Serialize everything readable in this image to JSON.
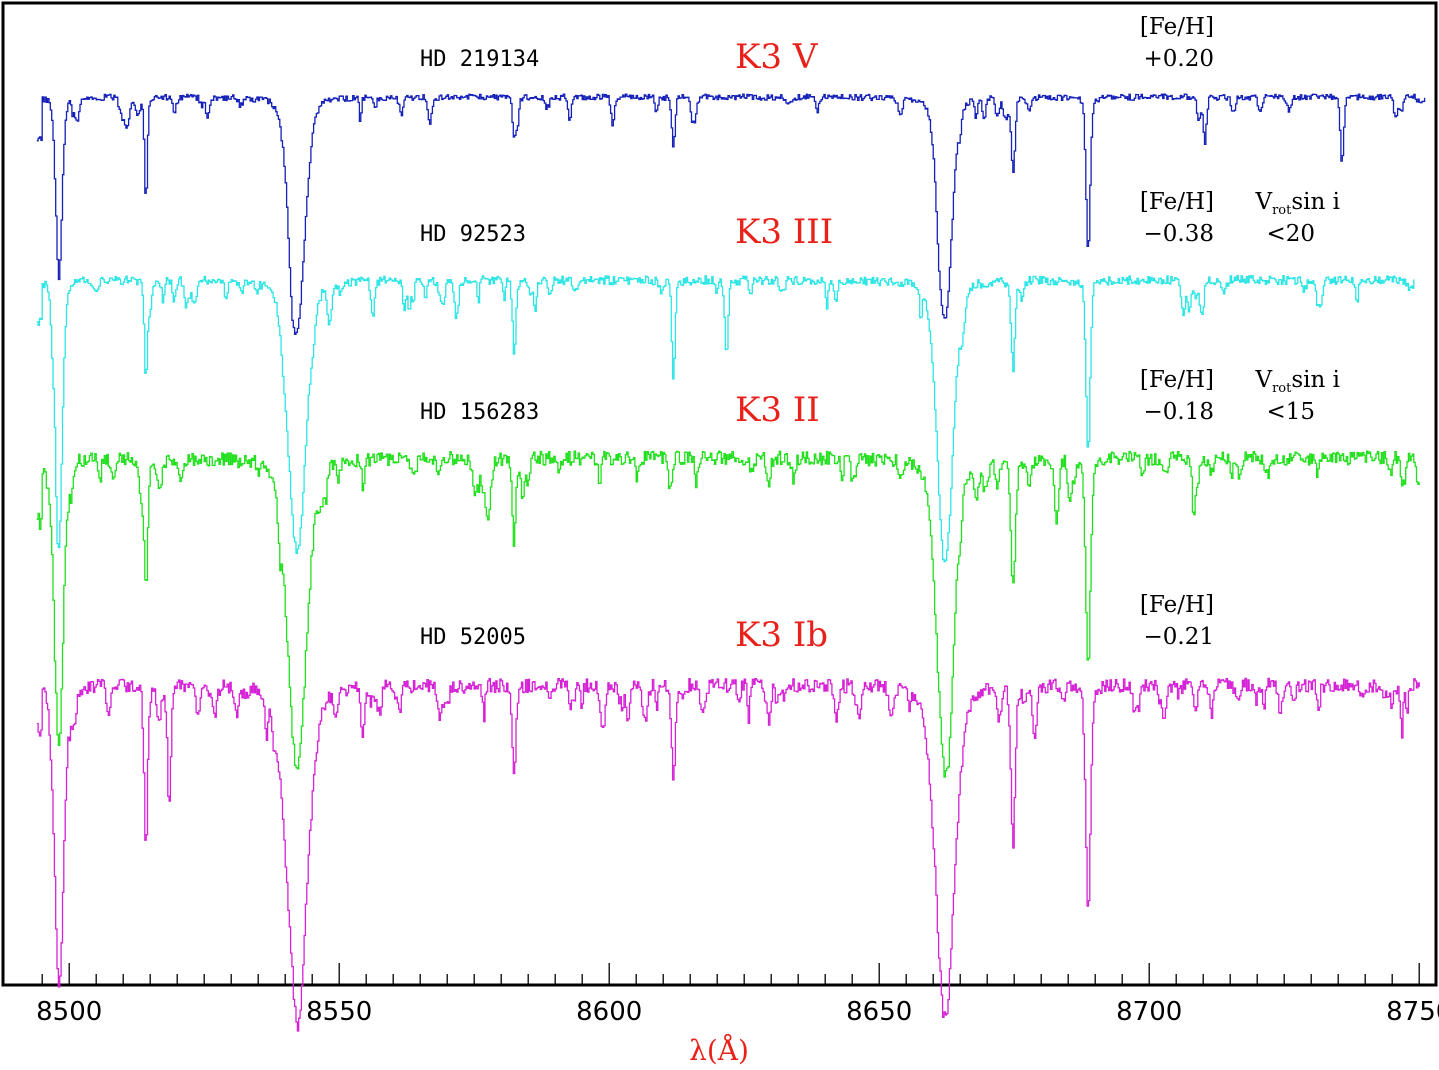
{
  "chart_data": {
    "type": "line",
    "title": "",
    "xlabel": "λ(Å)",
    "ylabel": "",
    "xlim": [
      8492,
      8752
    ],
    "x_ticks": [
      8500,
      8550,
      8600,
      8650,
      8700,
      8750
    ],
    "x_tick_labels": [
      "8500",
      "8550",
      "8600",
      "8650",
      "8700",
      "8750"
    ],
    "grid": false,
    "axis_label_color": "#e8221a",
    "series": [
      {
        "star": "HD 219134",
        "sptype": "K3  V",
        "params": [
          {
            "label": "[Fe/H]",
            "value": "+0.20"
          }
        ],
        "color": "#1420b8",
        "x_range": [
          8494,
          8751
        ],
        "continuum_level": 0.96,
        "baseline_offset": 0,
        "lines": [
          {
            "x": 8498.0,
            "depth": 0.78,
            "width": 0.6
          },
          {
            "x": 8514.1,
            "depth": 0.42,
            "width": 0.25
          },
          {
            "x": 8542.1,
            "depth": 1.0,
            "width": 1.5
          },
          {
            "x": 8582.3,
            "depth": 0.18,
            "width": 0.3
          },
          {
            "x": 8611.8,
            "depth": 0.22,
            "width": 0.3
          },
          {
            "x": 8662.1,
            "depth": 0.97,
            "width": 1.3
          },
          {
            "x": 8674.7,
            "depth": 0.34,
            "width": 0.35
          },
          {
            "x": 8688.6,
            "depth": 0.68,
            "width": 0.4
          },
          {
            "x": 8710.2,
            "depth": 0.2,
            "width": 0.3
          },
          {
            "x": 8735.6,
            "depth": 0.3,
            "width": 0.3
          }
        ]
      },
      {
        "star": "HD 92523",
        "sptype": "K3  III",
        "params": [
          {
            "label": "[Fe/H]",
            "value": "−0.38"
          },
          {
            "label": "Vrotsin i",
            "value": "<20"
          }
        ],
        "color": "#2ee5e5",
        "x_range": [
          8494,
          8749
        ],
        "continuum_level": 0.96,
        "baseline_offset": 1,
        "lines": [
          {
            "x": 8498.0,
            "depth": 0.88,
            "width": 0.7
          },
          {
            "x": 8514.1,
            "depth": 0.38,
            "width": 0.3
          },
          {
            "x": 8542.1,
            "depth": 1.05,
            "width": 1.7
          },
          {
            "x": 8582.3,
            "depth": 0.3,
            "width": 0.3
          },
          {
            "x": 8611.8,
            "depth": 0.4,
            "width": 0.3
          },
          {
            "x": 8621.6,
            "depth": 0.3,
            "width": 0.3
          },
          {
            "x": 8662.1,
            "depth": 1.1,
            "width": 1.5
          },
          {
            "x": 8674.7,
            "depth": 0.35,
            "width": 0.35
          },
          {
            "x": 8688.6,
            "depth": 0.6,
            "width": 0.4
          }
        ]
      },
      {
        "star": "HD 156283",
        "sptype": "K3  II",
        "params": [
          {
            "label": "[Fe/H]",
            "value": "−0.18"
          },
          {
            "label": "Vrotsin i",
            "value": "<15"
          }
        ],
        "color": "#22e01e",
        "x_range": [
          8494,
          8750
        ],
        "continuum_level": 0.96,
        "baseline_offset": 2,
        "lines": [
          {
            "x": 8498.0,
            "depth": 1.0,
            "width": 0.8
          },
          {
            "x": 8514.1,
            "depth": 0.45,
            "width": 0.35
          },
          {
            "x": 8542.1,
            "depth": 1.1,
            "width": 1.8
          },
          {
            "x": 8582.3,
            "depth": 0.3,
            "width": 0.35
          },
          {
            "x": 8662.1,
            "depth": 1.1,
            "width": 1.6
          },
          {
            "x": 8674.7,
            "depth": 0.45,
            "width": 0.4
          },
          {
            "x": 8688.6,
            "depth": 0.75,
            "width": 0.45
          }
        ]
      },
      {
        "star": "HD 52005",
        "sptype": "K3  Ib",
        "params": [
          {
            "label": "[Fe/H]",
            "value": "−0.21"
          }
        ],
        "color": "#d622d6",
        "x_range": [
          8494,
          8750
        ],
        "continuum_level": 0.96,
        "baseline_offset": 3,
        "lines": [
          {
            "x": 8498.0,
            "depth": 1.0,
            "width": 0.9
          },
          {
            "x": 8514.1,
            "depth": 0.55,
            "width": 0.35
          },
          {
            "x": 8518.4,
            "depth": 0.4,
            "width": 0.35
          },
          {
            "x": 8542.1,
            "depth": 1.1,
            "width": 2.0
          },
          {
            "x": 8582.3,
            "depth": 0.3,
            "width": 0.35
          },
          {
            "x": 8611.8,
            "depth": 0.35,
            "width": 0.35
          },
          {
            "x": 8662.1,
            "depth": 1.15,
            "width": 1.8
          },
          {
            "x": 8674.7,
            "depth": 0.55,
            "width": 0.4
          },
          {
            "x": 8688.6,
            "depth": 0.8,
            "width": 0.45
          }
        ]
      }
    ]
  }
}
